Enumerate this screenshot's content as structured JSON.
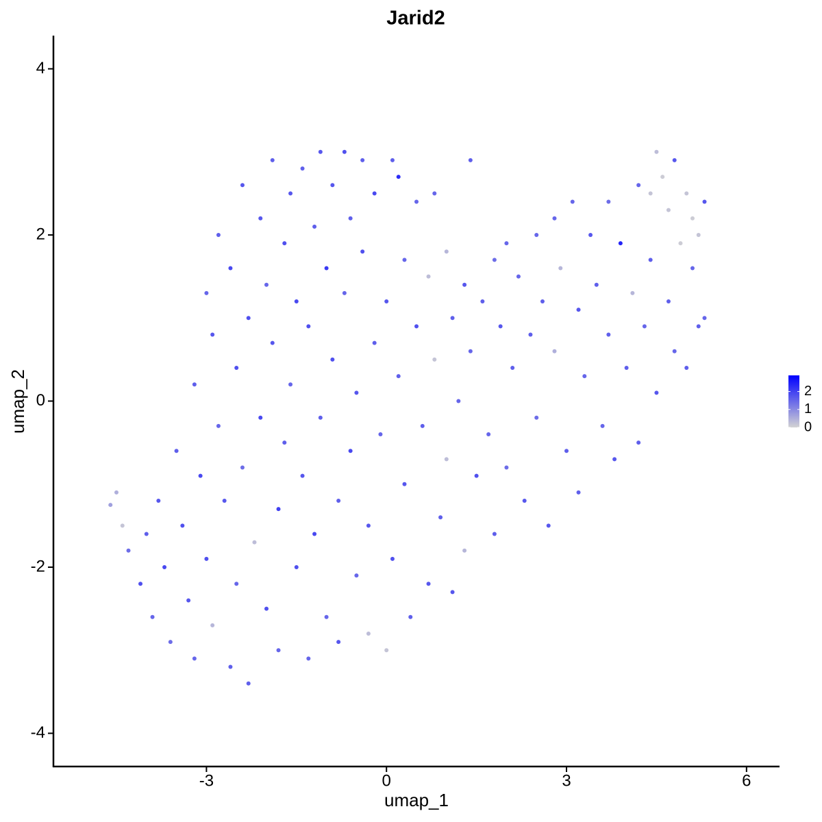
{
  "chart_data": {
    "type": "scatter",
    "title": "Jarid2",
    "x_label": "umap_1",
    "y_label": "umap_2",
    "xlim": [
      -5.55,
      6.55
    ],
    "ylim": [
      -4.4,
      4.4
    ],
    "xticks": [
      -3,
      0,
      3,
      6
    ],
    "yticks": [
      -4,
      -2,
      0,
      2,
      4
    ],
    "low_color": "#d3d3d3",
    "high_color": "#0000ff",
    "colorbar_lim": [
      0,
      2.9
    ],
    "colorbar_ticks": [
      0,
      1,
      2
    ],
    "x": [
      -4.6,
      -4.5,
      -4.4,
      -4.3,
      -4.1,
      -4.0,
      -3.9,
      -3.8,
      -3.7,
      -3.6,
      -3.5,
      -3.4,
      -3.3,
      -3.2,
      -3.2,
      -3.1,
      -3.0,
      -3.0,
      -2.9,
      -2.9,
      -2.8,
      -2.8,
      -2.7,
      -2.6,
      -2.6,
      -2.5,
      -2.5,
      -2.4,
      -2.4,
      -2.3,
      -2.3,
      -2.2,
      -2.1,
      -2.1,
      -2.0,
      -2.0,
      -1.9,
      -1.9,
      -1.8,
      -1.8,
      -1.7,
      -1.7,
      -1.6,
      -1.6,
      -1.5,
      -1.5,
      -1.4,
      -1.4,
      -1.3,
      -1.3,
      -1.2,
      -1.2,
      -1.1,
      -1.1,
      -1.0,
      -1.0,
      -0.9,
      -0.9,
      -0.8,
      -0.8,
      -0.7,
      -0.7,
      -0.6,
      -0.6,
      -0.5,
      -0.5,
      -0.4,
      -0.4,
      -0.3,
      -0.3,
      -0.2,
      -0.2,
      -0.1,
      0.0,
      0.0,
      0.1,
      0.1,
      0.2,
      0.2,
      0.3,
      0.3,
      0.4,
      0.5,
      0.5,
      0.6,
      0.7,
      0.7,
      0.8,
      0.8,
      0.9,
      1.0,
      1.0,
      1.1,
      1.1,
      1.2,
      1.3,
      1.3,
      1.4,
      1.4,
      1.5,
      1.6,
      1.7,
      1.8,
      1.8,
      1.9,
      2.0,
      2.0,
      2.1,
      2.2,
      2.3,
      2.4,
      2.5,
      2.5,
      2.6,
      2.7,
      2.8,
      2.8,
      2.9,
      3.0,
      3.1,
      3.2,
      3.2,
      3.3,
      3.4,
      3.5,
      3.6,
      3.7,
      3.7,
      3.8,
      3.9,
      4.0,
      4.1,
      4.2,
      4.2,
      4.3,
      4.4,
      4.4,
      4.5,
      4.5,
      4.6,
      4.7,
      4.7,
      4.8,
      4.8,
      4.9,
      5.0,
      5.0,
      5.1,
      5.1,
      5.2,
      5.2,
      5.3,
      5.3
    ],
    "y": [
      -1.25,
      -1.1,
      -1.5,
      -1.8,
      -2.2,
      -1.6,
      -2.6,
      -1.2,
      -2.0,
      -2.9,
      -0.6,
      -1.5,
      -2.4,
      -3.1,
      0.2,
      -0.9,
      1.3,
      -1.9,
      0.8,
      -2.7,
      2.0,
      -0.3,
      -1.2,
      1.6,
      -3.2,
      0.4,
      -2.2,
      2.6,
      -0.8,
      1.0,
      -3.4,
      -1.7,
      2.2,
      -0.2,
      1.4,
      -2.5,
      2.9,
      0.7,
      -1.3,
      -3.0,
      1.9,
      -0.5,
      2.5,
      0.2,
      -2.0,
      1.2,
      2.8,
      -0.9,
      -3.1,
      0.9,
      2.1,
      -1.6,
      3.0,
      -0.2,
      1.6,
      -2.6,
      2.6,
      0.5,
      -1.2,
      -2.9,
      1.3,
      3.0,
      -0.6,
      2.2,
      0.1,
      -2.1,
      1.8,
      2.9,
      -1.5,
      -2.8,
      0.7,
      2.5,
      -0.4,
      1.2,
      -3.0,
      2.9,
      -1.9,
      0.3,
      2.7,
      -1.0,
      1.7,
      -2.6,
      0.9,
      2.4,
      -0.3,
      1.5,
      -2.2,
      2.5,
      0.5,
      -1.4,
      1.8,
      -0.7,
      1.0,
      -2.3,
      0.0,
      -1.8,
      1.4,
      2.9,
      0.6,
      -0.9,
      1.2,
      -0.4,
      1.7,
      -1.6,
      0.9,
      1.9,
      -0.8,
      0.4,
      1.5,
      -1.2,
      0.8,
      2.0,
      -0.2,
      1.2,
      -1.5,
      2.2,
      0.6,
      1.6,
      -0.6,
      2.4,
      1.1,
      -1.1,
      0.3,
      2.0,
      1.4,
      -0.3,
      0.8,
      2.4,
      -0.7,
      1.9,
      0.4,
      1.3,
      2.6,
      -0.5,
      0.9,
      1.7,
      2.5,
      3.0,
      0.1,
      2.7,
      1.2,
      2.3,
      0.6,
      2.9,
      1.9,
      2.5,
      0.4,
      1.6,
      2.2,
      0.9,
      2.0,
      2.4,
      1.0
    ],
    "values": [
      0.7,
      0.5,
      0.2,
      1.4,
      1.8,
      1.6,
      1.5,
      1.7,
      1.9,
      1.4,
      1.6,
      1.8,
      1.7,
      1.5,
      1.6,
      1.9,
      1.5,
      1.8,
      1.7,
      0.4,
      1.6,
      1.5,
      1.7,
      1.9,
      1.6,
      1.8,
      1.5,
      1.7,
      1.4,
      1.8,
      1.6,
      0.3,
      1.7,
      1.9,
      1.5,
      1.8,
      1.6,
      1.7,
      2.0,
      1.5,
      1.8,
      1.6,
      1.7,
      1.5,
      1.8,
      1.9,
      1.6,
      1.7,
      1.5,
      1.8,
      1.6,
      1.9,
      1.7,
      1.6,
      2.1,
      1.5,
      1.7,
      1.8,
      1.6,
      1.7,
      1.5,
      1.8,
      1.9,
      1.6,
      1.7,
      1.5,
      1.8,
      1.6,
      1.7,
      0.3,
      1.6,
      1.9,
      1.5,
      1.7,
      0.2,
      1.6,
      1.8,
      1.6,
      2.3,
      1.7,
      1.5,
      1.6,
      1.8,
      1.5,
      1.6,
      0.3,
      1.7,
      1.5,
      0.2,
      1.6,
      0.4,
      0.3,
      1.6,
      1.7,
      1.5,
      0.4,
      1.7,
      1.6,
      1.5,
      1.8,
      1.6,
      1.5,
      1.4,
      1.6,
      1.7,
      1.5,
      1.4,
      1.6,
      1.5,
      1.7,
      1.6,
      1.5,
      1.4,
      1.6,
      1.7,
      1.5,
      0.5,
      0.4,
      1.6,
      1.5,
      1.7,
      1.6,
      1.5,
      1.7,
      1.6,
      1.5,
      1.6,
      1.4,
      1.7,
      2.4,
      1.6,
      0.4,
      1.5,
      1.6,
      1.5,
      1.6,
      0.2,
      0.3,
      1.7,
      0.1,
      1.6,
      0.2,
      1.5,
      1.7,
      0.1,
      0.2,
      1.6,
      1.5,
      0.1,
      1.6,
      0.2,
      1.7,
      1.5
    ]
  }
}
